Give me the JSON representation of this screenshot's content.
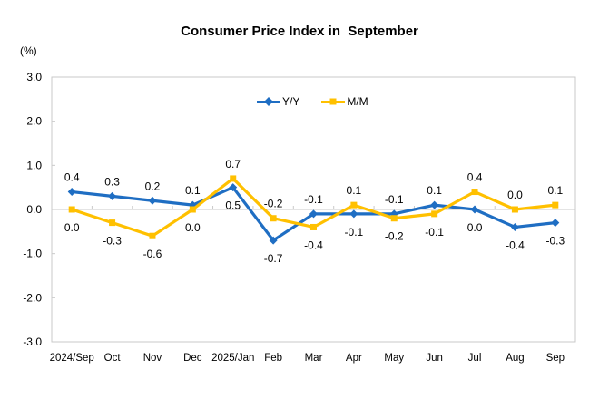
{
  "chart": {
    "title": "Consumer Price Index in  September",
    "unit_label": "(%)"
  },
  "chart_data": {
    "type": "line",
    "categories": [
      "2024/Sep",
      "Oct",
      "Nov",
      "Dec",
      "2025/Jan",
      "Feb",
      "Mar",
      "Apr",
      "May",
      "Jun",
      "Jul",
      "Aug",
      "Sep"
    ],
    "series": [
      {
        "name": "Y/Y",
        "color": "#1F6EC3",
        "marker": "diamond",
        "values": [
          0.4,
          0.3,
          0.2,
          0.1,
          0.5,
          -0.7,
          -0.1,
          -0.1,
          -0.1,
          0.1,
          0.0,
          -0.4,
          -0.3
        ],
        "label_sides": [
          "above",
          "above",
          "above",
          "above",
          "below",
          "below",
          "above",
          "below",
          "above",
          "above",
          "below",
          "below",
          "below"
        ]
      },
      {
        "name": "M/M",
        "color": "#FFC000",
        "marker": "square",
        "values": [
          0.0,
          -0.3,
          -0.6,
          0.0,
          0.7,
          -0.2,
          -0.4,
          0.1,
          -0.2,
          -0.1,
          0.4,
          0.0,
          0.1
        ],
        "label_sides": [
          "below",
          "below",
          "below",
          "below",
          "above",
          "above",
          "below",
          "above",
          "below",
          "below",
          "above",
          "above",
          "above"
        ]
      }
    ],
    "ylim": [
      -3.0,
      3.0
    ],
    "ytick_step": 1.0,
    "ytick_labels": [
      "3.0",
      "2.0",
      "1.0",
      "0.0",
      "-1.0",
      "-2.0",
      "-3.0"
    ],
    "legend_position": "top-center-inside",
    "grid": "zero-line-only",
    "axis_color": "#C9C9C9",
    "text_color": "#000000"
  }
}
